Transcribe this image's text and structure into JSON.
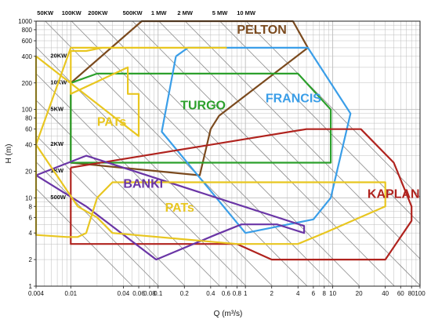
{
  "chart_data": {
    "type": "line",
    "title": "",
    "xlabel": "Q (m³/s)",
    "ylabel": "H (m)",
    "x_scale": "log",
    "y_scale": "log",
    "xlim": [
      0.004,
      100
    ],
    "ylim": [
      1,
      1000
    ],
    "grid": true,
    "x_ticks": [
      0.004,
      0.01,
      0.04,
      0.06,
      0.08,
      0.1,
      0.2,
      0.4,
      0.6,
      0.8,
      1,
      2,
      4,
      6,
      8,
      10,
      20,
      40,
      60,
      80,
      100
    ],
    "y_ticks": [
      1,
      2,
      4,
      6,
      8,
      10,
      20,
      40,
      60,
      80,
      100,
      200,
      400,
      600,
      800,
      1000
    ],
    "power_lines": [
      {
        "label": "50KW",
        "kw": 50,
        "label_pos": "top"
      },
      {
        "label": "100KW",
        "kw": 100,
        "label_pos": "top"
      },
      {
        "label": "200KW",
        "kw": 200,
        "label_pos": "top"
      },
      {
        "label": "500KW",
        "kw": 500,
        "label_pos": "top"
      },
      {
        "label": "1 MW",
        "kw": 1000,
        "label_pos": "top"
      },
      {
        "label": "2 MW",
        "kw": 2000,
        "label_pos": "top"
      },
      {
        "label": "5 MW",
        "kw": 5000,
        "label_pos": "top"
      },
      {
        "label": "10 MW",
        "kw": 10000,
        "label_pos": "top"
      },
      {
        "label": "20KW",
        "kw": 20,
        "label_pos": "inside"
      },
      {
        "label": "10KW",
        "kw": 10,
        "label_pos": "inside"
      },
      {
        "label": "5KW",
        "kw": 5,
        "label_pos": "inside"
      },
      {
        "label": "2KW",
        "kw": 2,
        "label_pos": "inside"
      },
      {
        "label": "1KW",
        "kw": 1,
        "label_pos": "inside"
      },
      {
        "label": "500W",
        "kw": 0.5,
        "label_pos": "inside"
      }
    ],
    "series": [
      {
        "name": "PELTON",
        "color": "#7b4a1e",
        "x": [
          0.01,
          0.065,
          1.6,
          3.5,
          5.2,
          0.5,
          0.4,
          0.3,
          0.01,
          0.01
        ],
        "y": [
          200,
          1000,
          1000,
          1000,
          500,
          85,
          60,
          18,
          25,
          200
        ]
      },
      {
        "name": "TURGO",
        "color": "#2ca02c",
        "x": [
          0.01,
          0.02,
          4.0,
          9.5,
          9.5,
          0.01,
          0.01
        ],
        "y": [
          200,
          255,
          255,
          100,
          25,
          25,
          200
        ]
      },
      {
        "name": "FRANCIS",
        "color": "#3a9ee8",
        "x": [
          0.16,
          0.22,
          5.2,
          16.0,
          9.5,
          6.0,
          1.0,
          0.11,
          0.16
        ],
        "y": [
          400,
          500,
          500,
          90,
          10,
          5.7,
          4.0,
          56,
          400
        ]
      },
      {
        "name": "KAPLAN",
        "color": "#b0231e",
        "x": [
          0.01,
          5.0,
          21.0,
          50.0,
          80.0,
          80.0,
          40.0,
          2.0,
          0.8,
          0.01,
          0.01
        ],
        "y": [
          22,
          60,
          60,
          25,
          8,
          5.5,
          2.0,
          2.0,
          3.0,
          3.0,
          22
        ]
      },
      {
        "name": "BANKI",
        "color": "#6a35a6",
        "x": [
          0.004,
          0.015,
          0.095,
          0.45,
          0.9,
          2.3,
          4.7,
          4.7,
          0.015,
          0.004
        ],
        "y": [
          18,
          8,
          2.0,
          3.8,
          5.0,
          5.0,
          4.0,
          4.8,
          30,
          18
        ]
      },
      {
        "name": "PATs",
        "color": "#e8c620",
        "x": [
          0.004,
          0.004,
          0.004,
          0.06,
          0.06,
          0.045,
          0.045,
          0.01,
          0.01,
          0.015,
          0.023,
          0.035,
          0.06,
          0.06,
          0.6,
          0.6,
          0.06,
          0.045,
          0.01,
          0.004
        ],
        "y": [
          40,
          100,
          400,
          50,
          150,
          150,
          300,
          150,
          460,
          460,
          500,
          500,
          500,
          500,
          500,
          500,
          500,
          500,
          500,
          40
        ]
      },
      {
        "name": "PATs",
        "color": "#e8c620",
        "x": [
          0.004,
          0.004,
          0.009,
          0.012,
          0.015,
          0.02,
          0.03,
          0.6,
          3.0,
          10.0,
          40.0,
          40.0,
          8.0,
          4.0,
          0.8,
          0.03,
          0.02,
          0.012,
          0.004
        ],
        "y": [
          40,
          3.8,
          3.6,
          3.6,
          4.0,
          10,
          15,
          15,
          15,
          15,
          15,
          8.0,
          4.0,
          3.0,
          3.0,
          4.0,
          6.0,
          8.0,
          40
        ]
      }
    ],
    "labels": [
      {
        "text": "PELTON",
        "color": "#7b4a1e",
        "x": 0.8,
        "y": 720
      },
      {
        "text": "TURGO",
        "color": "#2ca02c",
        "x": 0.18,
        "y": 100
      },
      {
        "text": "FRANCIS",
        "color": "#3a9ee8",
        "x": 1.7,
        "y": 120
      },
      {
        "text": "KAPLAN",
        "color": "#b0231e",
        "x": 25,
        "y": 10
      },
      {
        "text": "BANKI",
        "color": "#6a35a6",
        "x": 0.04,
        "y": 13
      },
      {
        "text": "PATs",
        "color": "#e8c620",
        "x": 0.02,
        "y": 65
      },
      {
        "text": "PATs",
        "color": "#e8c620",
        "x": 0.12,
        "y": 7
      }
    ]
  }
}
